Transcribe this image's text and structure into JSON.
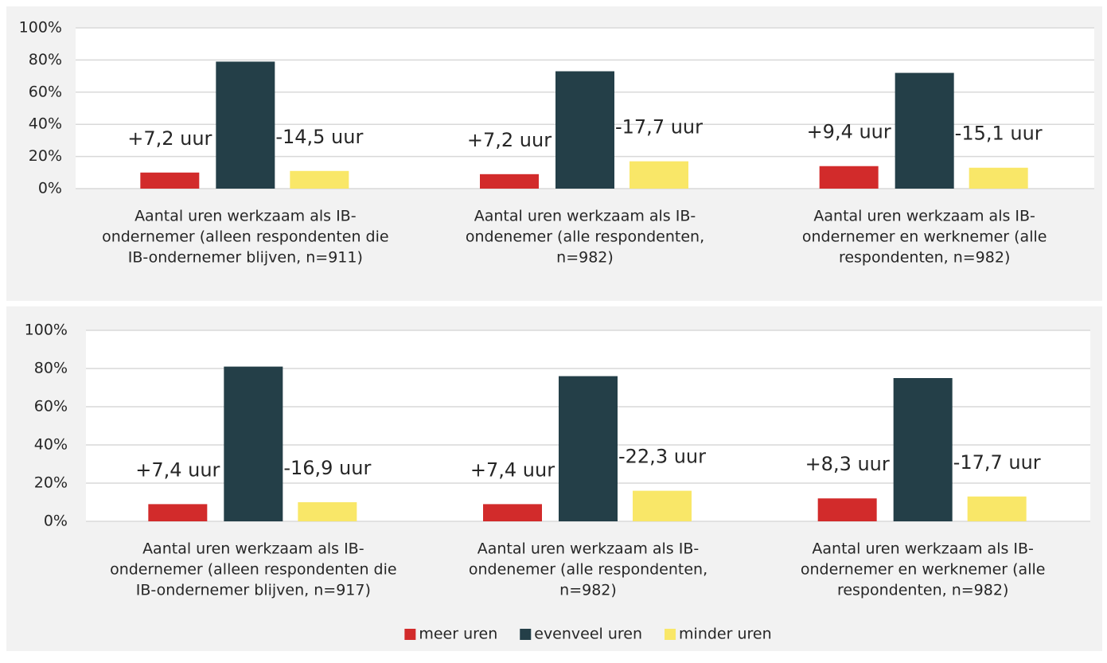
{
  "chart_data": [
    {
      "type": "bar",
      "categories": [
        [
          "Aantal uren werkzaam als IB-",
          "ondernemer (alleen respondenten die",
          "IB-ondernemer blijven, n=911)"
        ],
        [
          "Aantal uren werkzaam als IB-",
          "ondenemer (alle respondenten,",
          "n=982)"
        ],
        [
          "Aantal uren werkzaam als IB-",
          "ondernemer en werknemer (alle",
          "respondenten, n=982)"
        ]
      ],
      "series": [
        {
          "color": "#d22b2b",
          "values": [
            10,
            9,
            14
          ],
          "annotations": [
            "+7,2 uur",
            "+7,2 uur",
            "+9,4 uur"
          ]
        },
        {
          "color": "#243f48",
          "values": [
            79,
            73,
            72
          ]
        },
        {
          "color": "#f9e768",
          "values": [
            11,
            17,
            13
          ],
          "annotations": [
            "-14,5 uur",
            "-17,7 uur",
            "-15,1 uur"
          ]
        }
      ],
      "ylim": [
        0,
        100
      ],
      "yticks": [
        {
          "value": 0,
          "label": "0%"
        },
        {
          "value": 20,
          "label": "20%"
        },
        {
          "value": 40,
          "label": "40%"
        },
        {
          "value": 60,
          "label": "60%"
        },
        {
          "value": 80,
          "label": "80%"
        },
        {
          "value": 100,
          "label": "100%"
        }
      ],
      "grid": true
    },
    {
      "type": "bar",
      "categories": [
        [
          "Aantal uren werkzaam als IB-",
          "ondernemer (alleen respondenten die",
          "IB-ondernemer blijven, n=917)"
        ],
        [
          "Aantal uren werkzaam als IB-",
          "ondenemer (alle respondenten,",
          "n=982)"
        ],
        [
          "Aantal uren werkzaam als IB-",
          "ondernemer en werknemer (alle",
          "respondenten, n=982)"
        ]
      ],
      "series": [
        {
          "name": "meer uren",
          "color": "#d22b2b",
          "values": [
            9,
            9,
            12
          ],
          "annotations": [
            "+7,4 uur",
            "+7,4 uur",
            "+8,3 uur"
          ]
        },
        {
          "name": "evenveel uren",
          "color": "#243f48",
          "values": [
            81,
            76,
            75
          ]
        },
        {
          "name": "minder uren",
          "color": "#f9e768",
          "values": [
            10,
            16,
            13
          ],
          "annotations": [
            "-16,9 uur",
            "-22,3 uur",
            "-17,7 uur"
          ]
        }
      ],
      "ylim": [
        0,
        100
      ],
      "yticks": [
        {
          "value": 0,
          "label": "0%"
        },
        {
          "value": 20,
          "label": "20%"
        },
        {
          "value": 40,
          "label": "40%"
        },
        {
          "value": 60,
          "label": "60%"
        },
        {
          "value": 80,
          "label": "80%"
        },
        {
          "value": 100,
          "label": "100%"
        }
      ],
      "grid": true,
      "legend": "bottom"
    }
  ]
}
